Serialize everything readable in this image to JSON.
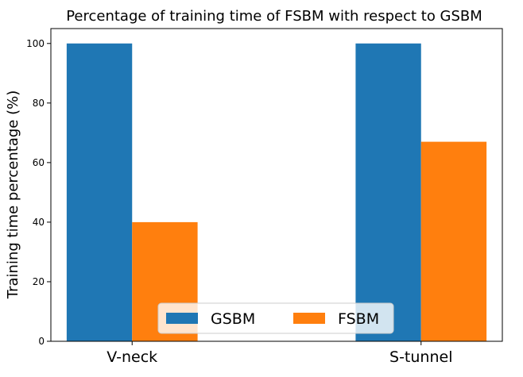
{
  "chart_data": {
    "type": "bar",
    "title": "Percentage of training time of FSBM with respect to GSBM",
    "xlabel": "",
    "ylabel": "Training time percentage (%)",
    "categories": [
      "V-neck",
      "S-tunnel"
    ],
    "series": [
      {
        "name": "GSBM",
        "values": [
          100,
          100
        ],
        "color": "#1f77b4"
      },
      {
        "name": "FSBM",
        "values": [
          40,
          67
        ],
        "color": "#ff7f0e"
      }
    ],
    "ylim": [
      0,
      105
    ],
    "yticks": [
      0,
      20,
      40,
      60,
      80,
      100
    ],
    "grid": false,
    "legend": {
      "placement": "bottom-center",
      "columns": 2
    }
  }
}
